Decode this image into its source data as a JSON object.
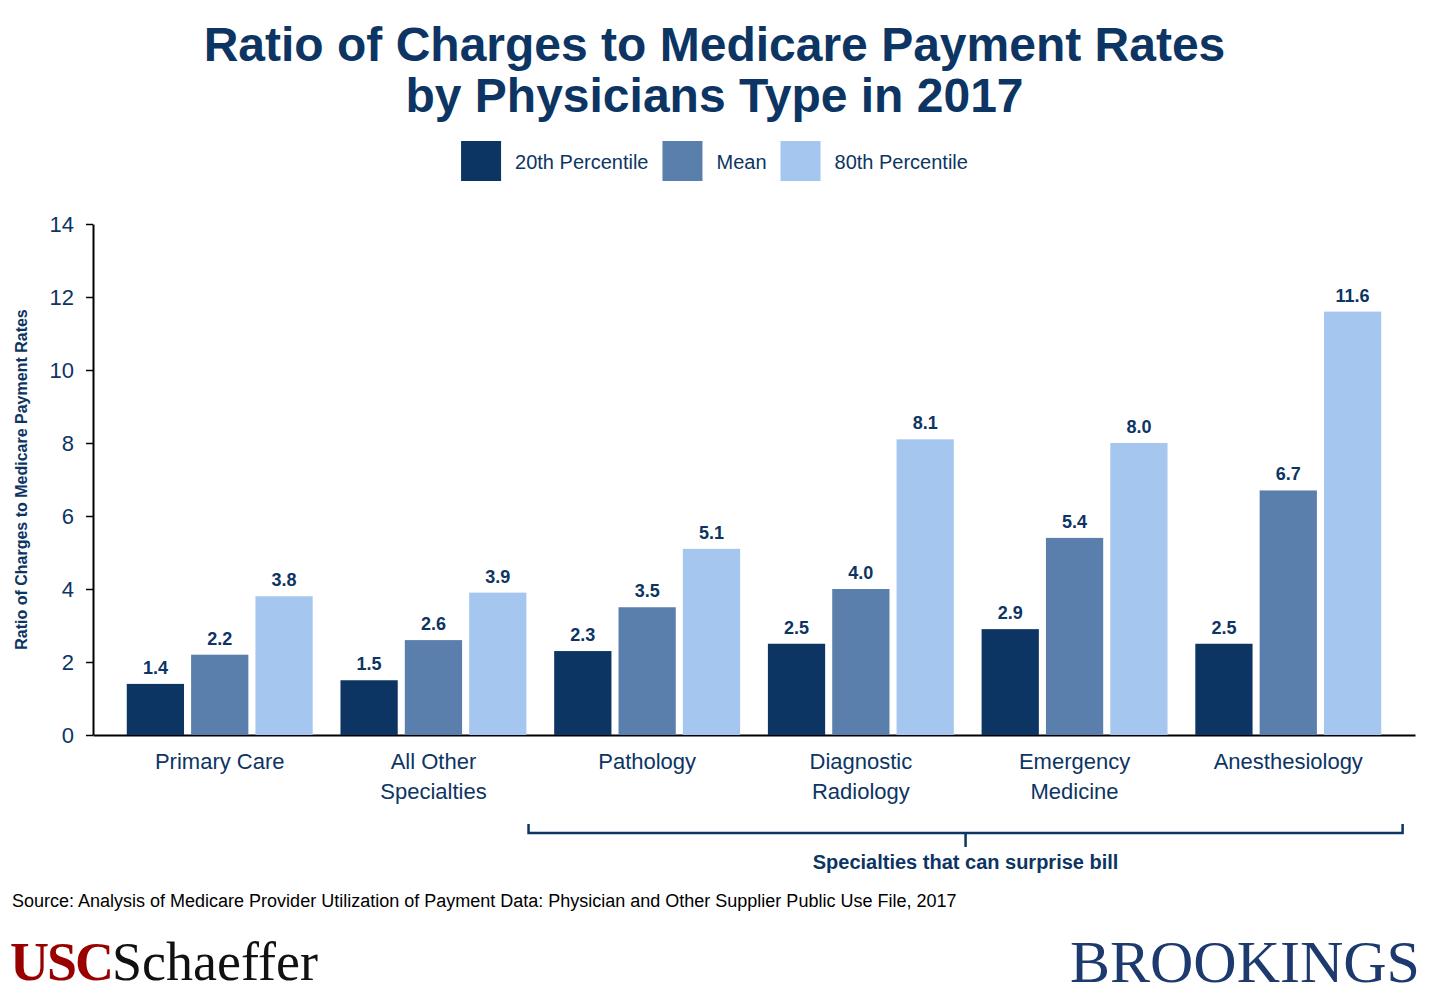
{
  "chart_data": {
    "type": "bar",
    "title": "Ratio of Charges to Medicare Payment Rates by Physicians Type in 2017",
    "y_label": "Ratio of Charges to Medicare Payment Rates",
    "categories": [
      "Primary Care",
      "All Other Specialties",
      "Pathology",
      "Diagnostic Radiology",
      "Emergency Medicine",
      "Anesthesiology"
    ],
    "series": [
      {
        "name": "20th Percentile",
        "color": "#0d3563",
        "values": [
          1.4,
          1.5,
          2.3,
          2.5,
          2.9,
          2.5
        ],
        "value_labels": [
          "1.4",
          "1.5",
          "2.3",
          "2.5",
          "2.9",
          "2.5"
        ]
      },
      {
        "name": "Mean",
        "color": "#5a7fac",
        "values": [
          2.2,
          2.6,
          3.5,
          4.0,
          5.4,
          6.7
        ],
        "value_labels": [
          "2.2",
          "2.6",
          "3.5",
          "4.0",
          "5.4",
          "6.7"
        ]
      },
      {
        "name": "80th Percentile",
        "color": "#a5c7ef",
        "values": [
          3.8,
          3.9,
          5.1,
          8.1,
          8.0,
          11.6
        ],
        "value_labels": [
          "3.8",
          "3.9",
          "5.1",
          "8.1",
          "8.0",
          "11.6"
        ]
      }
    ],
    "ylim": [
      0,
      14
    ],
    "yticks": [
      0,
      2,
      4,
      6,
      8,
      10,
      12,
      14
    ],
    "grid": false,
    "legend": "top",
    "data_labels": true,
    "annotations": [
      {
        "text": "Specialties that can surprise bill",
        "from": "Pathology",
        "to": "Anesthesiology"
      }
    ],
    "source": "Source: Analysis of Medicare Provider Utilization of Payment Data: Physician and Other Supplier Public Use File, 2017",
    "logos": [
      [
        "USC",
        "Schaeffer"
      ],
      [
        "BROOKINGS"
      ]
    ]
  }
}
